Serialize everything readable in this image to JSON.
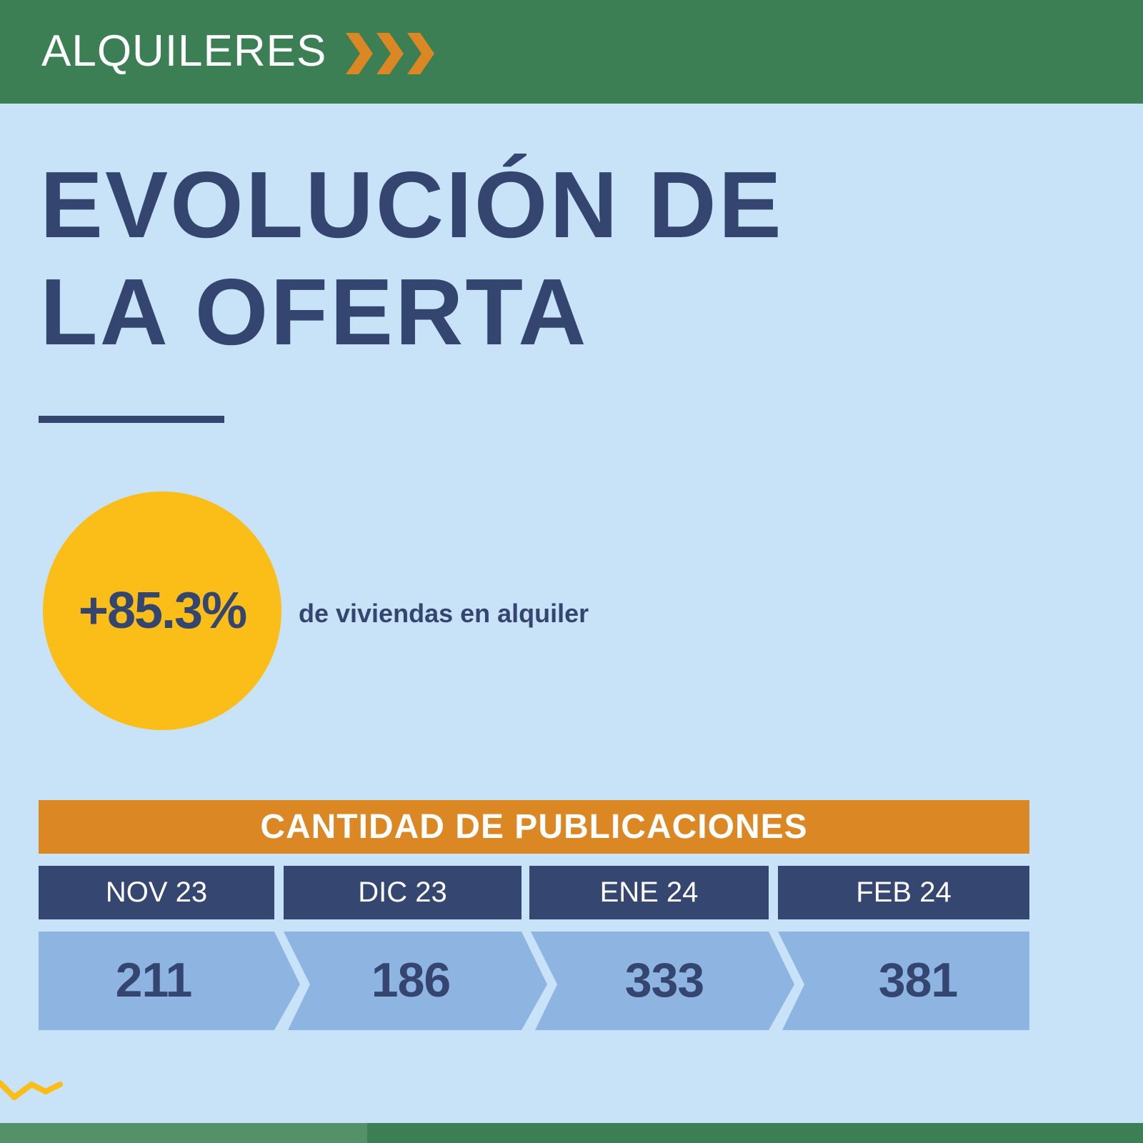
{
  "header": {
    "section_label": "ALQUILERES",
    "icon": "triple-chevron-right-icon",
    "accent_color": "#db8723"
  },
  "title": {
    "line1": "EVOLUCIÓN DE",
    "line2": "LA OFERTA"
  },
  "highlight": {
    "value": "+85.3%",
    "caption": "de viviendas en alquiler"
  },
  "table": {
    "title": "CANTIDAD DE PUBLICACIONES",
    "periods": [
      "NOV 23",
      "DIC 23",
      "ENE 24",
      "FEB 24"
    ],
    "values": [
      "211",
      "186",
      "333",
      "381"
    ]
  },
  "colors": {
    "background": "#c8e3f7",
    "primary": "#34466f",
    "header_green": "#3d7f54",
    "circle_yellow": "#fbbd18",
    "value_cell": "#8eb4e2"
  }
}
